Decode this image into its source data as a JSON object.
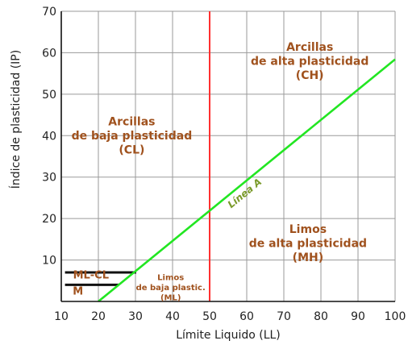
{
  "chart_data": {
    "type": "line",
    "title": "",
    "xlabel": "Límite Liquido (LL)",
    "ylabel": "Índice de plasticidad (IP)",
    "xlim": [
      10,
      100
    ],
    "ylim": [
      0,
      70
    ],
    "x_ticks": [
      10,
      20,
      30,
      40,
      50,
      60,
      70,
      80,
      90,
      100
    ],
    "y_ticks": [
      10,
      20,
      30,
      40,
      50,
      60,
      70
    ],
    "grid": true,
    "colors": {
      "a_line": "#22e622",
      "a_line_label": "#7a9a2a",
      "ll50_line": "#ff3030",
      "zone_labels": "#a0521e",
      "grid": "#9a9a9a",
      "axes": "#111111"
    },
    "series": [
      {
        "name": "Línea A",
        "x": [
          20,
          100
        ],
        "y": [
          0,
          58.4
        ]
      }
    ],
    "vertical_lines": [
      {
        "x": 50
      }
    ],
    "horizontal_segments": [
      {
        "y": 7,
        "x_start": 11,
        "x_end": 30.2
      },
      {
        "y": 4,
        "x_start": 11,
        "x_end": 25.5
      }
    ],
    "zone_labels": [
      {
        "key": "ch",
        "lines": [
          "Arcillas",
          "de alta plasticidad",
          "(CH)"
        ],
        "x": 77,
        "y": 60.5,
        "size": 14
      },
      {
        "key": "cl",
        "lines": [
          "Arcillas",
          "de baja plasticidad",
          "(CL)"
        ],
        "x": 29,
        "y": 42.5,
        "size": 14
      },
      {
        "key": "mh",
        "lines": [
          "Limos",
          "de alta plasticidad",
          "(MH)"
        ],
        "x": 76.5,
        "y": 16.5,
        "size": 14
      },
      {
        "key": "ml",
        "lines": [
          "Limos",
          "de baja plastic.",
          "(ML)"
        ],
        "x": 39.5,
        "y": 5.2,
        "size": 10
      },
      {
        "key": "mlcl",
        "lines": [
          "ML-CL"
        ],
        "x": 18,
        "y": 5.5,
        "size": 13
      },
      {
        "key": "m",
        "lines": [
          "M"
        ],
        "x": 14.5,
        "y": 1.7,
        "size": 13
      }
    ]
  }
}
